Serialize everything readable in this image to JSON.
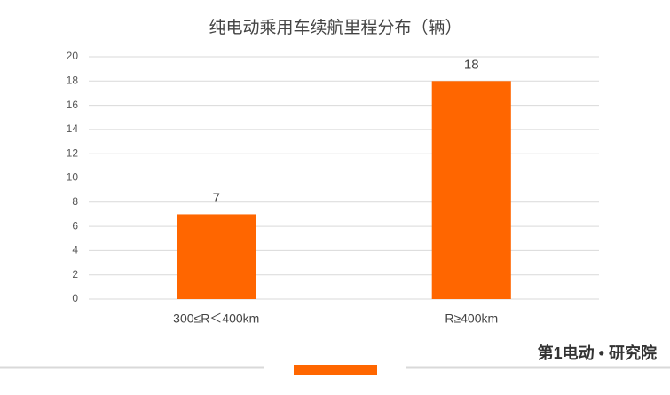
{
  "chart_data": {
    "type": "bar",
    "title": "纯电动乘用车续航里程分布（辆）",
    "categories": [
      "300≤R＜400km",
      "R≥400km"
    ],
    "values": [
      7,
      18
    ],
    "color": "#ff6600",
    "ylim": [
      0,
      20
    ],
    "yticks": [
      0,
      2,
      4,
      6,
      8,
      10,
      12,
      14,
      16,
      18,
      20
    ],
    "grid": true
  },
  "footer": {
    "logo": "第1电动 • 研究院"
  }
}
